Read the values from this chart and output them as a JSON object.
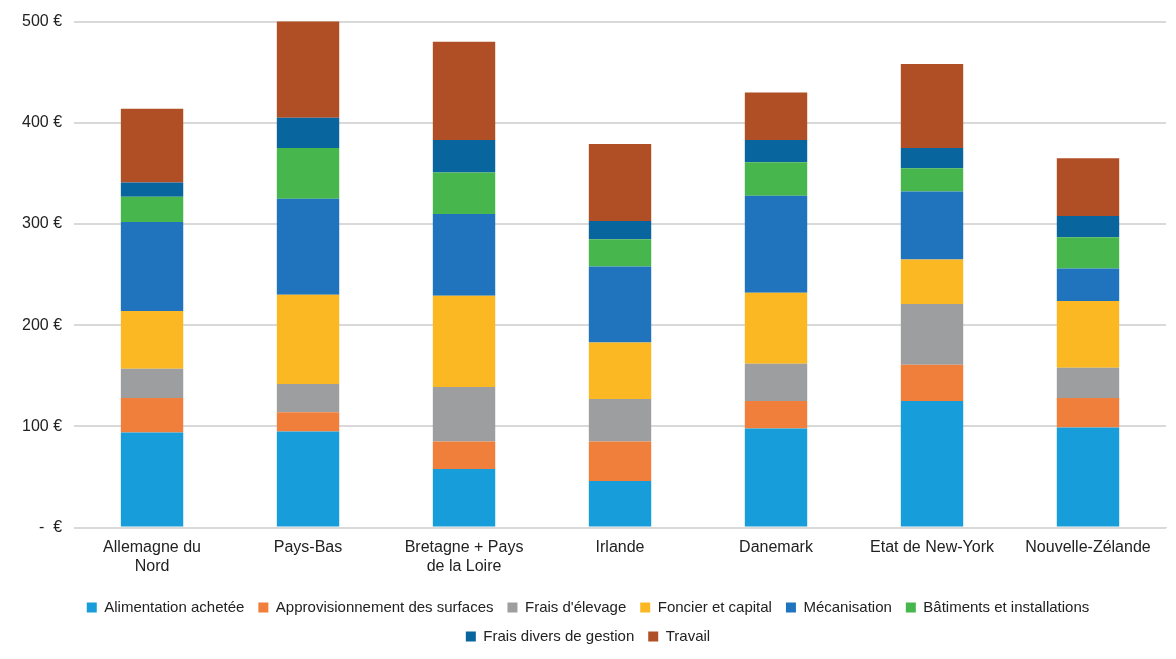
{
  "chart_data": {
    "type": "bar",
    "stacked": true,
    "categories": [
      "Allemagne du Nord",
      "Pays-Bas",
      "Bretagne + Pays de la Loire",
      "Irlande",
      "Danemark",
      "Etat de New-York",
      "Nouvelle-Zélande"
    ],
    "series": [
      {
        "name": "Alimentation achetée",
        "color": "#179dd9",
        "values": [
          94,
          95,
          58,
          46,
          98,
          125,
          99
        ]
      },
      {
        "name": "Approvisionnement des surfaces",
        "color": "#f07f3c",
        "values": [
          34,
          19,
          27,
          39,
          27,
          36,
          29
        ]
      },
      {
        "name": "Frais d'élevage",
        "color": "#9c9e9f",
        "values": [
          29,
          28,
          54,
          42,
          37,
          60,
          30
        ]
      },
      {
        "name": "Foncier et capital",
        "color": "#fbb822",
        "values": [
          57,
          88,
          90,
          56,
          70,
          44,
          66
        ]
      },
      {
        "name": "Mécanisation",
        "color": "#1f74bd",
        "values": [
          88,
          95,
          81,
          75,
          96,
          67,
          32
        ]
      },
      {
        "name": "Bâtiments et installations",
        "color": "#47b64d",
        "values": [
          25,
          50,
          41,
          27,
          33,
          23,
          31
        ]
      },
      {
        "name": "Frais divers de gestion",
        "color": "#09659d",
        "values": [
          14,
          30,
          32,
          18,
          22,
          20,
          21
        ]
      },
      {
        "name": "Travail",
        "color": "#b04f25",
        "values": [
          73,
          97,
          97,
          76,
          47,
          83,
          57
        ]
      }
    ],
    "ylim": [
      0,
      500
    ],
    "yticks": [
      {
        "value": 0,
        "label": "-  €"
      },
      {
        "value": 100,
        "label": "100 €"
      },
      {
        "value": 200,
        "label": "200 €"
      },
      {
        "value": 300,
        "label": "300 €"
      },
      {
        "value": 400,
        "label": "400 €"
      },
      {
        "value": 500,
        "label": "500 €"
      }
    ],
    "grid": "y",
    "legend": "bottom"
  }
}
